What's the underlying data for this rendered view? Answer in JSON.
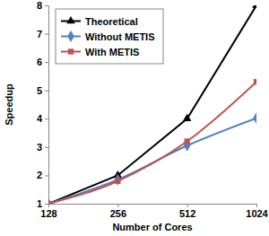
{
  "chart_data": {
    "type": "line",
    "x_label": "Number of Cores",
    "y_label": "Speedup",
    "x": [
      128,
      256,
      512,
      1024
    ],
    "series": [
      {
        "name": "Theoretical",
        "color": "#000000",
        "marker": "triangle",
        "line_style": "solid",
        "values": [
          1,
          2,
          4,
          8
        ]
      },
      {
        "name": "Without METIS",
        "color": "#4f81bd",
        "marker": "diamond",
        "line_style": "smooth",
        "values": [
          1,
          1.85,
          3.05,
          4.02
        ]
      },
      {
        "name": "With METIS",
        "color": "#c0504d",
        "marker": "square",
        "line_style": "smooth",
        "values": [
          1,
          1.8,
          3.2,
          5.3
        ]
      }
    ],
    "log": "x",
    "xlim": [
      128,
      1024
    ],
    "xticks": [
      128,
      256,
      512,
      1024
    ],
    "ylim": [
      1,
      8
    ],
    "yticks": [
      1,
      2,
      3,
      4,
      5,
      6,
      7,
      8
    ],
    "grid": false,
    "legend": "upper-left"
  }
}
